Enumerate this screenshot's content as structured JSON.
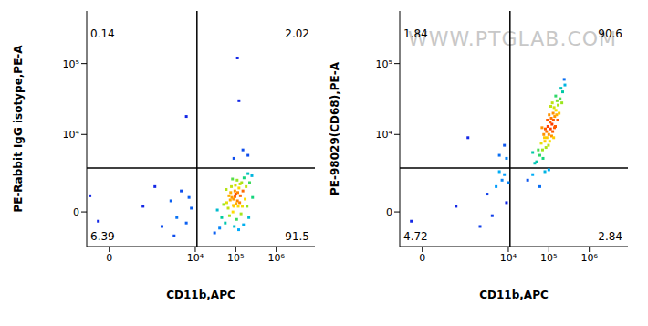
{
  "chart_data": [
    {
      "type": "scatter",
      "x_label": "CD11b,APC",
      "y_label": "PE-Rabbit IgG isotype,PE-A",
      "xlim": [
        -250,
        9000000
      ],
      "xticks": [
        0,
        {
          "value": 10000,
          "label": "10⁴"
        },
        {
          "value": 100000,
          "label": "10⁵"
        },
        {
          "value": 1000000,
          "label": "10⁶"
        }
      ],
      "ylim": [
        -2250,
        550000
      ],
      "yticks": [
        0,
        {
          "value": 10000,
          "label": "10⁴"
        },
        {
          "value": 100000,
          "label": "10⁵"
        }
      ],
      "gates": {
        "x": 11000,
        "y": 3200
      },
      "quadrants": {
        "upper_left": 0.14,
        "upper_right": 2.02,
        "lower_left": 6.39,
        "lower_right": 91.5
      },
      "points": [
        [
          60000,
          500
        ],
        [
          80000,
          800
        ],
        [
          90000,
          300
        ],
        [
          100000,
          1000
        ],
        [
          110000,
          600
        ],
        [
          70000,
          -200
        ],
        [
          120000,
          1400
        ],
        [
          95000,
          1200
        ],
        [
          85000,
          0
        ],
        [
          130000,
          900
        ],
        [
          75000,
          1100
        ],
        [
          105000,
          -400
        ],
        [
          140000,
          1800
        ],
        [
          65000,
          200
        ],
        [
          115000,
          300
        ],
        [
          88000,
          700
        ],
        [
          98000,
          1600
        ],
        [
          125000,
          500
        ],
        [
          150000,
          1200
        ],
        [
          55000,
          -600
        ],
        [
          45000,
          -300
        ],
        [
          160000,
          2200
        ],
        [
          180000,
          1500
        ],
        [
          200000,
          2600
        ],
        [
          92000,
          -800
        ],
        [
          78000,
          1500
        ],
        [
          135000,
          -100
        ],
        [
          108000,
          2000
        ],
        [
          68000,
          900
        ],
        [
          50000,
          400
        ],
        [
          40000,
          -900
        ],
        [
          170000,
          700
        ],
        [
          220000,
          1800
        ],
        [
          250000,
          2400
        ],
        [
          118000,
          -1000
        ],
        [
          83000,
          2100
        ],
        [
          145000,
          300
        ],
        [
          102000,
          450
        ],
        [
          96000,
          850
        ],
        [
          112000,
          1100
        ],
        [
          87000,
          350
        ],
        [
          73000,
          650
        ],
        [
          128000,
          1700
        ],
        [
          190000,
          300
        ],
        [
          58000,
          1300
        ],
        [
          35000,
          100
        ],
        [
          30000,
          -1200
        ],
        [
          260000,
          800
        ],
        [
          210000,
          -300
        ],
        [
          155000,
          -700
        ],
        [
          -100,
          -500
        ],
        [
          500,
          300
        ],
        [
          1500,
          -800
        ],
        [
          2500,
          600
        ],
        [
          3500,
          -300
        ],
        [
          -200,
          900
        ],
        [
          4500,
          1200
        ],
        [
          6000,
          -600
        ],
        [
          8000,
          200
        ],
        [
          1000,
          1500
        ],
        [
          3000,
          -1400
        ],
        [
          7000,
          800
        ],
        [
          6000,
          18000
        ],
        [
          90000,
          4500
        ],
        [
          150000,
          6000
        ],
        [
          120000,
          30000
        ],
        [
          200000,
          5000
        ],
        [
          110000,
          120000
        ]
      ]
    },
    {
      "type": "scatter",
      "x_label": "CD11b,APC",
      "y_label": "PE-98029(CD68),PE-A",
      "watermark": "WWW.PTGLAB.COM",
      "xlim": [
        -250,
        9000000
      ],
      "xticks": [
        0,
        {
          "value": 10000,
          "label": "10⁴"
        },
        {
          "value": 100000,
          "label": "10⁵"
        },
        {
          "value": 1000000,
          "label": "10⁶"
        }
      ],
      "ylim": [
        -2250,
        550000
      ],
      "yticks": [
        0,
        {
          "value": 10000,
          "label": "10⁴"
        },
        {
          "value": 100000,
          "label": "10⁵"
        }
      ],
      "gates": {
        "x": 11000,
        "y": 3200
      },
      "quadrants": {
        "upper_left": 1.84,
        "upper_right": 90.6,
        "lower_left": 4.72,
        "lower_right": 2.84
      },
      "points": [
        [
          50000,
          4000
        ],
        [
          60000,
          5000
        ],
        [
          70000,
          6000
        ],
        [
          80000,
          8000
        ],
        [
          90000,
          9000
        ],
        [
          100000,
          10000
        ],
        [
          110000,
          12000
        ],
        [
          120000,
          14000
        ],
        [
          130000,
          16000
        ],
        [
          140000,
          18000
        ],
        [
          150000,
          22000
        ],
        [
          170000,
          26000
        ],
        [
          190000,
          32000
        ],
        [
          220000,
          40000
        ],
        [
          250000,
          50000
        ],
        [
          75000,
          10000
        ],
        [
          85000,
          6500
        ],
        [
          95000,
          13000
        ],
        [
          105000,
          8000
        ],
        [
          115000,
          17000
        ],
        [
          125000,
          11000
        ],
        [
          135000,
          24000
        ],
        [
          145000,
          13000
        ],
        [
          160000,
          30000
        ],
        [
          180000,
          20000
        ],
        [
          200000,
          45000
        ],
        [
          65000,
          7500
        ],
        [
          55000,
          6000
        ],
        [
          88000,
          11000
        ],
        [
          98000,
          7000
        ],
        [
          108000,
          15000
        ],
        [
          118000,
          9500
        ],
        [
          128000,
          20000
        ],
        [
          138000,
          12500
        ],
        [
          92000,
          16000
        ],
        [
          82000,
          12000
        ],
        [
          72000,
          4500
        ],
        [
          112000,
          25000
        ],
        [
          148000,
          35000
        ],
        [
          165000,
          16000
        ],
        [
          210000,
          28000
        ],
        [
          240000,
          60000
        ],
        [
          45000,
          3800
        ],
        [
          40000,
          5500
        ],
        [
          102000,
          19000
        ],
        [
          78000,
          9000
        ],
        [
          122000,
          28000
        ],
        [
          132000,
          9000
        ],
        [
          156000,
          19000
        ],
        [
          68000,
          12500
        ],
        [
          40000,
          2500
        ],
        [
          60000,
          1500
        ],
        [
          80000,
          2800
        ],
        [
          30000,
          2000
        ],
        [
          100000,
          3000
        ],
        [
          -100,
          -500
        ],
        [
          500,
          300
        ],
        [
          2000,
          -800
        ],
        [
          3000,
          1000
        ],
        [
          5000,
          1500
        ],
        [
          7000,
          2000
        ],
        [
          9000,
          500
        ],
        [
          8000,
          2500
        ],
        [
          4000,
          -200
        ],
        [
          6000,
          2800
        ],
        [
          10000,
          1800
        ],
        [
          1000,
          9000
        ],
        [
          6000,
          5000
        ],
        [
          9000,
          4500
        ],
        [
          8000,
          7000
        ]
      ]
    }
  ]
}
